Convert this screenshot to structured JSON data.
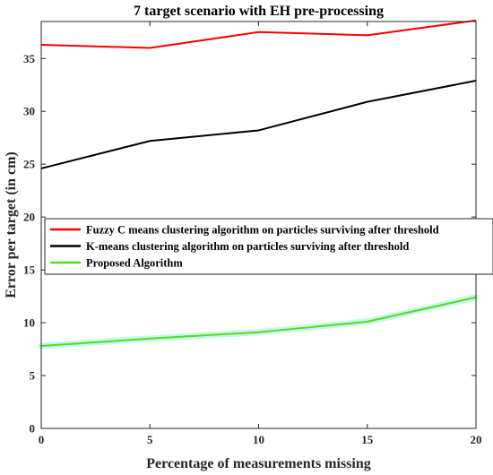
{
  "chart_data": {
    "type": "line",
    "title": "7 target scenario with EH pre-processing",
    "xlabel": "Percentage of measurements missing",
    "ylabel": "Error per target (in cm)",
    "x": [
      0,
      5,
      10,
      15,
      20
    ],
    "xlim": [
      0,
      20
    ],
    "ylim": [
      0,
      38.5
    ],
    "xticks": [
      0,
      5,
      10,
      15,
      20
    ],
    "yticks": [
      0,
      5,
      10,
      15,
      20,
      25,
      30,
      35
    ],
    "grid": false,
    "legend_position": "center",
    "series": [
      {
        "name": "Fuzzy C means clustering algorithm on particles surviving after threshold",
        "color": "#ff0000",
        "values": [
          36.3,
          36.0,
          37.5,
          37.2,
          38.6
        ]
      },
      {
        "name": "K-means clustering algorithm on particles surviving after threshold",
        "color": "#000000",
        "values": [
          24.6,
          27.2,
          28.2,
          30.9,
          32.9
        ]
      },
      {
        "name": "Proposed Algorithm",
        "color": "#55dd22",
        "band_color": "#c8f5ea",
        "values": [
          7.8,
          8.5,
          9.1,
          10.1,
          12.4
        ]
      }
    ]
  }
}
